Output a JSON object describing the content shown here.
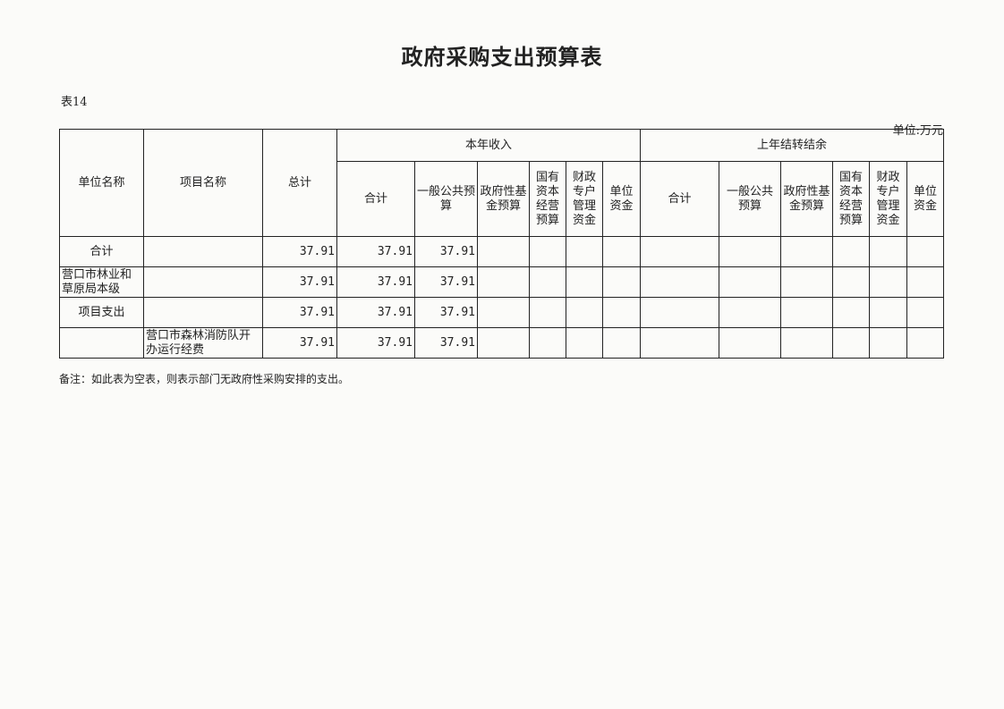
{
  "title": "政府采购支出预算表",
  "table_no": "表14",
  "unit": "单位:万元",
  "headers": {
    "unit_name": "单位名称",
    "project_name": "项目名称",
    "total": "总计",
    "current_year": "本年收入",
    "carryover": "上年结转结余",
    "sub": [
      "合计",
      "一般公共预算",
      "政府性基金预算",
      "国有资本经营预算",
      "财政专户管理资金",
      "单位资金"
    ]
  },
  "rows": [
    {
      "unit": "合计",
      "project": "",
      "values": [
        "37.91",
        "37.91",
        "37.91",
        "",
        "",
        "",
        "",
        "",
        "",
        "",
        "",
        "",
        ""
      ]
    },
    {
      "unit": "营口市林业和草原局本级",
      "project": "",
      "values": [
        "37.91",
        "37.91",
        "37.91",
        "",
        "",
        "",
        "",
        "",
        "",
        "",
        "",
        "",
        ""
      ]
    },
    {
      "unit": "项目支出",
      "project": "",
      "values": [
        "37.91",
        "37.91",
        "37.91",
        "",
        "",
        "",
        "",
        "",
        "",
        "",
        "",
        "",
        ""
      ]
    },
    {
      "unit": "",
      "project": "营口市森林消防队开办运行经费",
      "values": [
        "37.91",
        "37.91",
        "37.91",
        "",
        "",
        "",
        "",
        "",
        "",
        "",
        "",
        "",
        ""
      ]
    }
  ],
  "note": "备注：如此表为空表，则表示部门无政府性采购安排的支出。"
}
